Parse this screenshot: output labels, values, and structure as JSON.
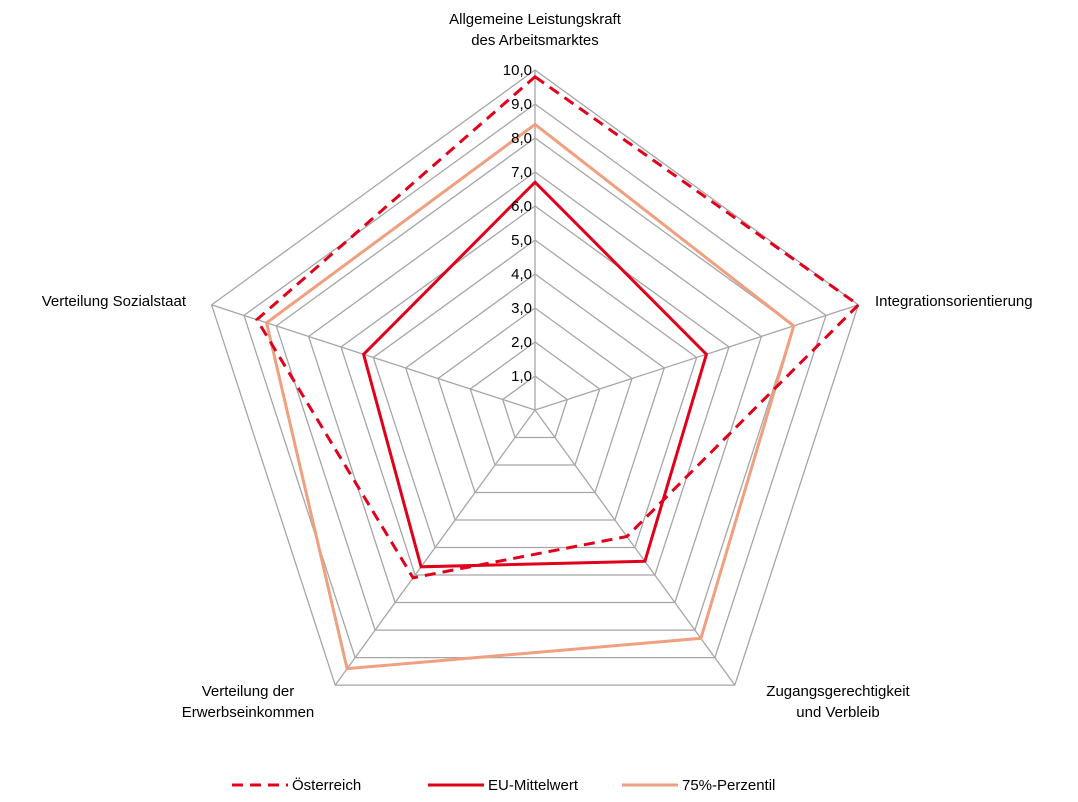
{
  "chart_data": {
    "type": "radar",
    "title": "",
    "axes": [
      [
        "Allgemeine Leistungskraft",
        "des Arbeitsmarktes"
      ],
      [
        "Integrationsorientierung"
      ],
      [
        "Zugangsgerechtigkeit",
        "und Verbleib"
      ],
      [
        "Verteilung der",
        "Erwerbseinkommen"
      ],
      [
        "Verteilung Sozialstaat"
      ]
    ],
    "range": [
      0,
      10
    ],
    "ticks": [
      "1,0",
      "2,0",
      "3,0",
      "4,0",
      "5,0",
      "6,0",
      "7,0",
      "8,0",
      "9,0",
      "10,0"
    ],
    "grid": true,
    "legend_position": "bottom",
    "series": [
      {
        "name": "Österreich",
        "values": [
          9.8,
          10.0,
          4.6,
          6.1,
          8.6
        ],
        "color": "#e0001b",
        "style": "dashed"
      },
      {
        "name": "EU-Mittelwert",
        "values": [
          6.7,
          5.3,
          5.5,
          5.7,
          5.3
        ],
        "color": "#e0001b",
        "style": "solid"
      },
      {
        "name": "75%-Perzentil",
        "values": [
          8.4,
          8.0,
          8.3,
          9.4,
          8.3
        ],
        "color": "#f0a080",
        "style": "solid"
      }
    ]
  }
}
